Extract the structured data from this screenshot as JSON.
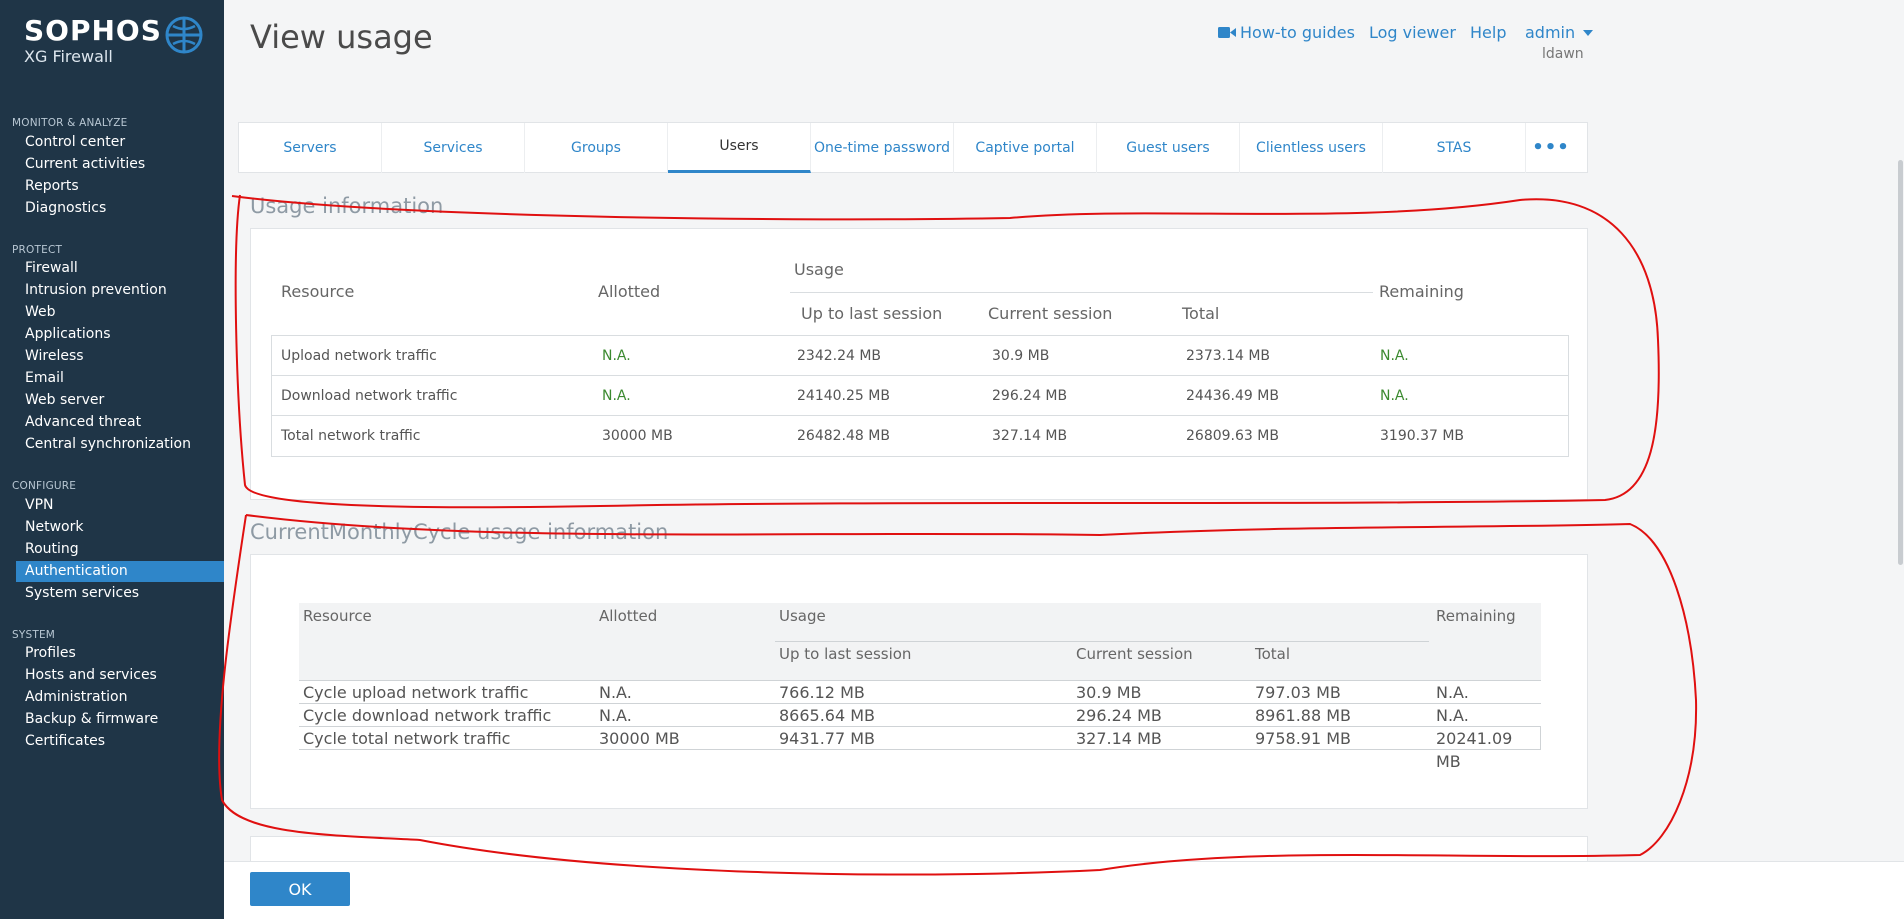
{
  "brand": {
    "name": "SOPHOS",
    "product": "XG Firewall"
  },
  "sidebar": {
    "sections": [
      {
        "title": "MONITOR & ANALYZE",
        "items": [
          "Control center",
          "Current activities",
          "Reports",
          "Diagnostics"
        ]
      },
      {
        "title": "PROTECT",
        "items": [
          "Firewall",
          "Intrusion prevention",
          "Web",
          "Applications",
          "Wireless",
          "Email",
          "Web server",
          "Advanced threat",
          "Central synchronization"
        ]
      },
      {
        "title": "CONFIGURE",
        "items": [
          "VPN",
          "Network",
          "Routing",
          "Authentication",
          "System services"
        ]
      },
      {
        "title": "SYSTEM",
        "items": [
          "Profiles",
          "Hosts and services",
          "Administration",
          "Backup & firmware",
          "Certificates"
        ]
      }
    ],
    "active_item": "Authentication"
  },
  "header": {
    "title": "View usage",
    "links": {
      "guides": "How-to guides",
      "log_viewer": "Log viewer",
      "help": "Help",
      "admin": "admin"
    },
    "username": "ldawn"
  },
  "tabs": [
    "Servers",
    "Services",
    "Groups",
    "Users",
    "One-time password",
    "Captive portal",
    "Guest users",
    "Clientless users",
    "STAS",
    "•••"
  ],
  "active_tab": "Users",
  "usage_info": {
    "title": "Usage information",
    "headers": {
      "resource": "Resource",
      "allotted": "Allotted",
      "usage": "Usage",
      "up_to_last": "Up to last session",
      "current": "Current session",
      "total": "Total",
      "remaining": "Remaining"
    },
    "rows": [
      [
        "Upload network traffic",
        "N.A.",
        "2342.24 MB",
        "30.9 MB",
        "2373.14 MB",
        "N.A."
      ],
      [
        "Download network traffic",
        "N.A.",
        "24140.25 MB",
        "296.24 MB",
        "24436.49 MB",
        "N.A."
      ],
      [
        "Total network traffic",
        "30000 MB",
        "26482.48 MB",
        "327.14 MB",
        "26809.63 MB",
        "3190.37 MB"
      ]
    ]
  },
  "cycle_info": {
    "title": "CurrentMonthlyCycle usage information",
    "headers": {
      "resource": "Resource",
      "allotted": "Allotted",
      "usage": "Usage",
      "up_to_last": "Up to last session",
      "current": "Current session",
      "total": "Total",
      "remaining": "Remaining"
    },
    "rows": [
      [
        "Cycle upload network traffic",
        "N.A.",
        "766.12 MB",
        "30.9 MB",
        "797.03 MB",
        "N.A."
      ],
      [
        "Cycle download network traffic",
        "N.A.",
        "8665.64 MB",
        "296.24 MB",
        "8961.88 MB",
        "N.A."
      ],
      [
        "Cycle total network traffic",
        "30000 MB",
        "9431.77 MB",
        "327.14 MB",
        "9758.91 MB",
        "20241.09 MB"
      ]
    ]
  },
  "footer": {
    "ok_label": "OK"
  },
  "colors": {
    "sidebar_bg": "#1f3547",
    "accent": "#2f86c9",
    "na_green": "#3b8a2f",
    "annotation_red": "#e01010"
  }
}
